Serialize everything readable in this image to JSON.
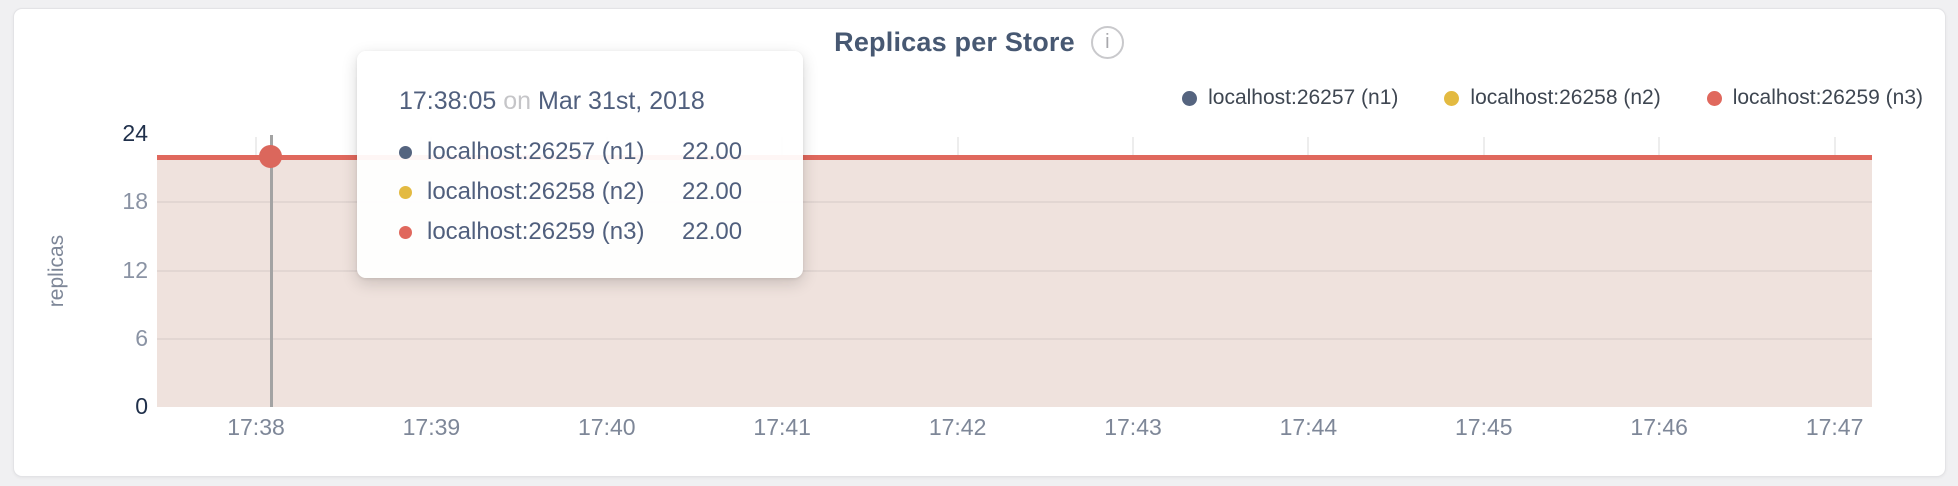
{
  "header": {
    "title": "Replicas per Store",
    "info_glyph": "i"
  },
  "legend": {
    "items": [
      {
        "label": "localhost:26257 (n1)",
        "color": "#55647f"
      },
      {
        "label": "localhost:26258 (n2)",
        "color": "#e3ba41"
      },
      {
        "label": "localhost:26259 (n3)",
        "color": "#e0685d"
      }
    ]
  },
  "y_axis": {
    "label": "replicas",
    "ticks": [
      0,
      6,
      12,
      18,
      24
    ],
    "max": 24
  },
  "x_axis": {
    "ticks": [
      "17:38",
      "17:39",
      "17:40",
      "17:41",
      "17:42",
      "17:43",
      "17:44",
      "17:45",
      "17:46",
      "17:47"
    ]
  },
  "chart_data": {
    "type": "area",
    "title": "Replicas per Store",
    "ylabel": "replicas",
    "ylim": [
      0,
      24
    ],
    "y_ticks": [
      0,
      6,
      12,
      18,
      24
    ],
    "x": [
      "17:38",
      "17:39",
      "17:40",
      "17:41",
      "17:42",
      "17:43",
      "17:44",
      "17:45",
      "17:46",
      "17:47"
    ],
    "series": [
      {
        "name": "localhost:26257 (n1)",
        "color": "#55647f",
        "values": [
          22,
          22,
          22,
          22,
          22,
          22,
          22,
          22,
          22,
          22
        ]
      },
      {
        "name": "localhost:26258 (n2)",
        "color": "#e3ba41",
        "values": [
          22,
          22,
          22,
          22,
          22,
          22,
          22,
          22,
          22,
          22
        ]
      },
      {
        "name": "localhost:26259 (n3)",
        "color": "#e0685d",
        "values": [
          22,
          22,
          22,
          22,
          22,
          22,
          22,
          22,
          22,
          22
        ]
      }
    ],
    "fill_color": "#efe2dd",
    "grid": true,
    "legend_position": "top-right",
    "hover_point": {
      "time": "17:38:05",
      "value": 22
    }
  },
  "tooltip": {
    "time": "17:38:05",
    "conjunction": "on",
    "date": "Mar 31st, 2018",
    "rows": [
      {
        "label": "localhost:26257 (n1)",
        "value": "22.00",
        "color": "#55647f"
      },
      {
        "label": "localhost:26258 (n2)",
        "value": "22.00",
        "color": "#e3ba41"
      },
      {
        "label": "localhost:26259 (n3)",
        "value": "22.00",
        "color": "#e0685d"
      }
    ]
  }
}
